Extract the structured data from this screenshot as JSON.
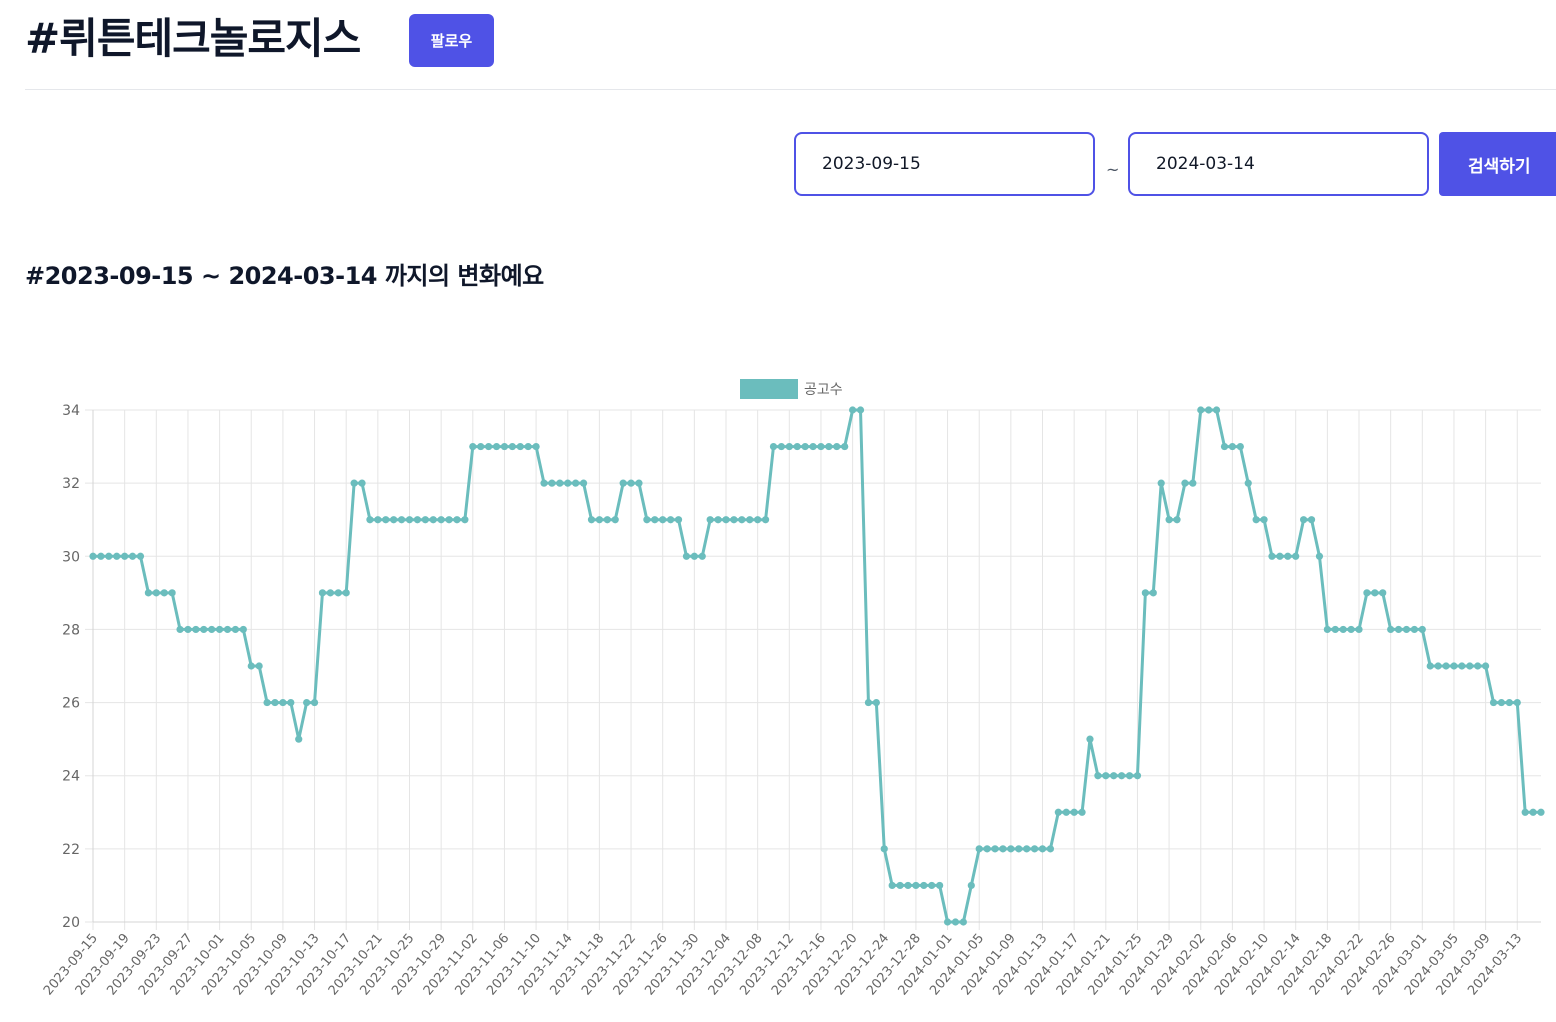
{
  "header": {
    "title": "#뤼튼테크놀로지스",
    "follow_label": "팔로우"
  },
  "search": {
    "start_date": "2023-09-15",
    "separator": "~",
    "end_date": "2024-03-14",
    "button_label": "검색하기"
  },
  "section": {
    "subtitle": "#2023-09-15 ~ 2024-03-14 까지의 변화예요"
  },
  "colors": {
    "accent": "#4f52e6",
    "line": "#6bbdbd"
  },
  "chart_data": {
    "type": "line",
    "title": "",
    "xlabel": "",
    "ylabel": "",
    "ylim": [
      20,
      34
    ],
    "yticks": [
      20,
      22,
      24,
      26,
      28,
      30,
      32,
      34
    ],
    "grid": true,
    "legend_position": "top-center",
    "start_date": "2023-09-15",
    "x_tick_labels": [
      "2023-09-15",
      "2023-09-19",
      "2023-09-23",
      "2023-09-27",
      "2023-10-01",
      "2023-10-05",
      "2023-10-09",
      "2023-10-13",
      "2023-10-17",
      "2023-10-21",
      "2023-10-25",
      "2023-10-29",
      "2023-11-02",
      "2023-11-06",
      "2023-11-10",
      "2023-11-14",
      "2023-11-18",
      "2023-11-22",
      "2023-11-26",
      "2023-11-30",
      "2023-12-04",
      "2023-12-08",
      "2023-12-12",
      "2023-12-16",
      "2023-12-20",
      "2023-12-24",
      "2023-12-28",
      "2024-01-01",
      "2024-01-05",
      "2024-01-09",
      "2024-01-13",
      "2024-01-17",
      "2024-01-21",
      "2024-01-25",
      "2024-01-29",
      "2024-02-02",
      "2024-02-06",
      "2024-02-10",
      "2024-02-14",
      "2024-02-18",
      "2024-02-22",
      "2024-02-26",
      "2024-03-01",
      "2024-03-05",
      "2024-03-09",
      "2024-03-13"
    ],
    "series": [
      {
        "name": "공고수",
        "color": "#6bbdbd",
        "values": [
          30,
          30,
          30,
          30,
          30,
          30,
          30,
          29,
          29,
          29,
          29,
          28,
          28,
          28,
          28,
          28,
          28,
          28,
          28,
          28,
          27,
          27,
          26,
          26,
          26,
          26,
          25,
          26,
          26,
          29,
          29,
          29,
          29,
          32,
          32,
          31,
          31,
          31,
          31,
          31,
          31,
          31,
          31,
          31,
          31,
          31,
          31,
          31,
          33,
          33,
          33,
          33,
          33,
          33,
          33,
          33,
          33,
          32,
          32,
          32,
          32,
          32,
          32,
          31,
          31,
          31,
          31,
          32,
          32,
          32,
          31,
          31,
          31,
          31,
          31,
          30,
          30,
          30,
          31,
          31,
          31,
          31,
          31,
          31,
          31,
          31,
          33,
          33,
          33,
          33,
          33,
          33,
          33,
          33,
          33,
          33,
          34,
          34,
          26,
          26,
          22,
          21,
          21,
          21,
          21,
          21,
          21,
          21,
          20,
          20,
          20,
          21,
          22,
          22,
          22,
          22,
          22,
          22,
          22,
          22,
          22,
          22,
          23,
          23,
          23,
          23,
          25,
          24,
          24,
          24,
          24,
          24,
          24,
          29,
          29,
          32,
          31,
          31,
          32,
          32,
          34,
          34,
          34,
          33,
          33,
          33,
          32,
          31,
          31,
          30,
          30,
          30,
          30,
          31,
          31,
          30,
          28,
          28,
          28,
          28,
          28,
          29,
          29,
          29,
          28,
          28,
          28,
          28,
          28,
          27,
          27,
          27,
          27,
          27,
          27,
          27,
          27,
          26,
          26,
          26,
          26,
          23,
          23,
          23
        ]
      }
    ]
  }
}
